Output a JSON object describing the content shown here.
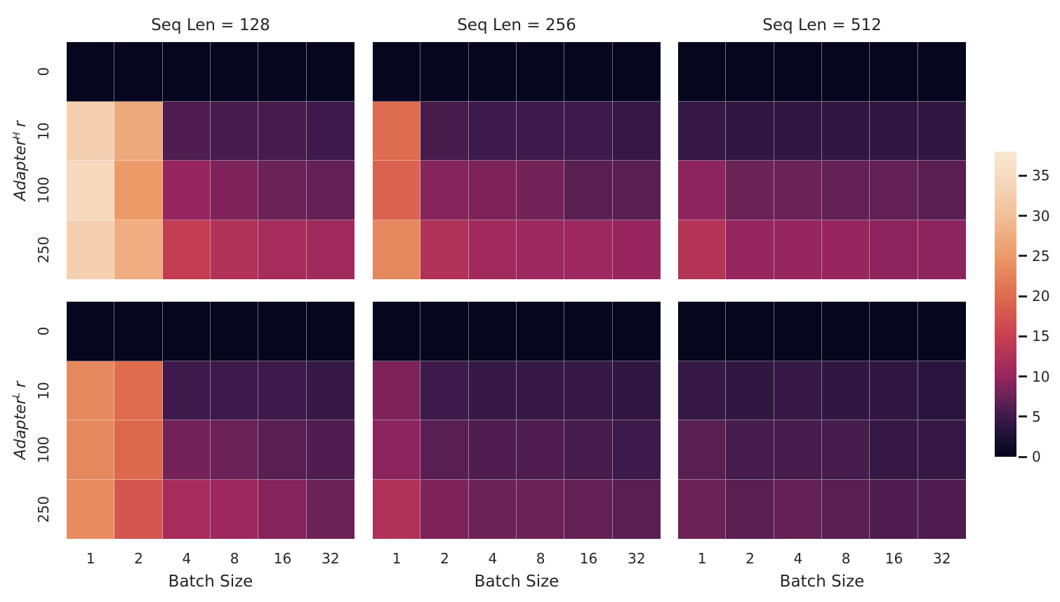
{
  "chart_data": {
    "type": "heatmap",
    "facet_grid": {
      "col_titles": [
        "Seq Len = 128",
        "Seq Len = 256",
        "Seq Len = 512"
      ],
      "row_labels": [
        {
          "prefix": "Adapter",
          "sup": "H",
          "suffix": " r"
        },
        {
          "prefix": "Adapter",
          "sup": "L",
          "suffix": " r"
        }
      ]
    },
    "x": {
      "label": "Batch Size",
      "ticks": [
        "1",
        "2",
        "4",
        "8",
        "16",
        "32"
      ]
    },
    "y": {
      "ticks": [
        "0",
        "10",
        "100",
        "250"
      ]
    },
    "colorbar": {
      "ticks": [
        0,
        5,
        10,
        15,
        20,
        25,
        30,
        35
      ],
      "vmin": 0,
      "vmax": 38,
      "stops": [
        [
          0,
          "#04051C"
        ],
        [
          2.5,
          "#1C1133"
        ],
        [
          5,
          "#3D1A4B"
        ],
        [
          7.5,
          "#6B2256"
        ],
        [
          10,
          "#97255F"
        ],
        [
          15,
          "#C93F51"
        ],
        [
          20,
          "#DE6C4E"
        ],
        [
          25,
          "#EC9A68"
        ],
        [
          30,
          "#F2BF99"
        ],
        [
          35,
          "#F6DCC1"
        ],
        [
          38,
          "#F8E7D2"
        ]
      ]
    },
    "grids": [
      {
        "row": "Adapter^H r",
        "col": "Seq Len = 128",
        "values": [
          [
            0.3,
            0.3,
            0.3,
            0.3,
            0.3,
            0.3
          ],
          [
            33,
            27,
            6,
            5.5,
            5.5,
            5
          ],
          [
            34.5,
            25,
            10,
            8.5,
            7.5,
            7
          ],
          [
            33,
            27.5,
            14.5,
            12.5,
            11.5,
            11
          ]
        ]
      },
      {
        "row": "Adapter^H r",
        "col": "Seq Len = 256",
        "values": [
          [
            0.3,
            0.3,
            0.3,
            0.3,
            0.3,
            0.3
          ],
          [
            20,
            5.5,
            5,
            5,
            5,
            4.5
          ],
          [
            19,
            9,
            8.5,
            8,
            6.5,
            6.5
          ],
          [
            23,
            12.5,
            11,
            10.5,
            10.5,
            10
          ]
        ]
      },
      {
        "row": "Adapter^H r",
        "col": "Seq Len = 512",
        "values": [
          [
            0.3,
            0.3,
            0.3,
            0.3,
            0.3,
            0.3
          ],
          [
            4.5,
            4,
            4,
            4,
            4,
            4
          ],
          [
            9.5,
            7.5,
            7.5,
            7,
            7,
            6.5
          ],
          [
            13,
            10,
            10,
            10,
            9.5,
            9.5
          ]
        ]
      },
      {
        "row": "Adapter^L r",
        "col": "Seq Len = 128",
        "values": [
          [
            0.3,
            0.3,
            0.3,
            0.3,
            0.3,
            0.3
          ],
          [
            23,
            20,
            5,
            5,
            5,
            4.5
          ],
          [
            23,
            19.5,
            8,
            7.5,
            6.5,
            6
          ],
          [
            23.5,
            17.5,
            11.5,
            10.5,
            9,
            7.5
          ]
        ]
      },
      {
        "row": "Adapter^L r",
        "col": "Seq Len = 256",
        "values": [
          [
            0.3,
            0.3,
            0.3,
            0.3,
            0.3,
            0.3
          ],
          [
            8.5,
            5,
            4.5,
            4.5,
            4.5,
            4
          ],
          [
            9.5,
            6.5,
            6,
            6,
            5.5,
            5
          ],
          [
            12.5,
            8.5,
            7.5,
            7.5,
            7,
            6.5
          ]
        ]
      },
      {
        "row": "Adapter^L r",
        "col": "Seq Len = 512",
        "values": [
          [
            0.3,
            0.3,
            0.3,
            0.3,
            0.3,
            0.3
          ],
          [
            4.5,
            4,
            4.5,
            4,
            4,
            3.5
          ],
          [
            6.5,
            5.5,
            5.5,
            5.5,
            4.5,
            4.5
          ],
          [
            7.5,
            6.5,
            7,
            6.5,
            6,
            6
          ]
        ]
      }
    ]
  }
}
